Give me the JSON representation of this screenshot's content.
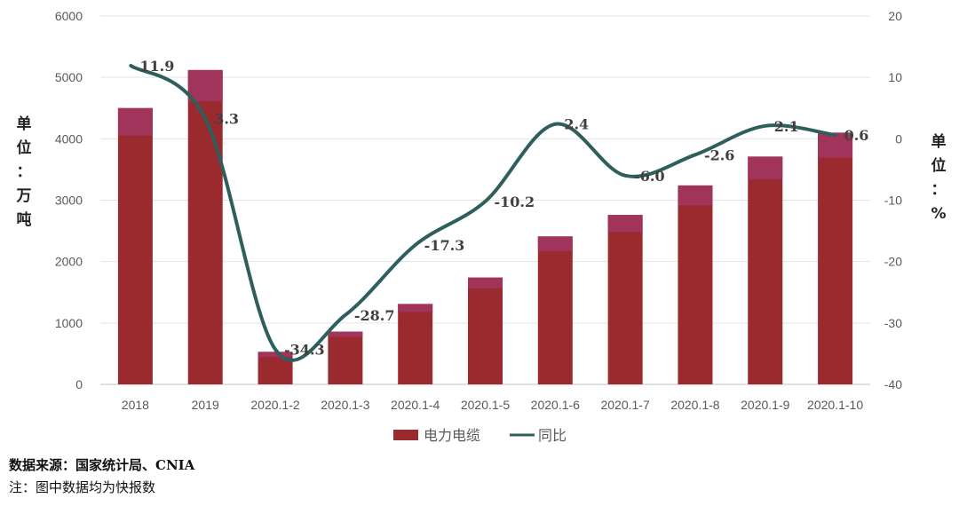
{
  "chart_data": {
    "type": "bar",
    "categories": [
      "2018",
      "2019",
      "2020.1-2",
      "2020.1-3",
      "2020.1-4",
      "2020.1-5",
      "2020.1-6",
      "2020.1-7",
      "2020.1-8",
      "2020.1-9",
      "2020.1-10"
    ],
    "series": [
      {
        "name": "电力电缆",
        "type": "bar",
        "axis": "left",
        "color": "#9B2A2E",
        "top_color": "#A0345A",
        "values": [
          4500,
          5120,
          530,
          860,
          1310,
          1740,
          2410,
          2760,
          3240,
          3710,
          4100
        ]
      },
      {
        "name": "同比",
        "type": "line",
        "axis": "right",
        "color": "#2E5F5D",
        "values": [
          11.9,
          3.3,
          -34.3,
          -28.7,
          -17.3,
          -10.2,
          2.4,
          -6.0,
          -2.6,
          2.1,
          0.6
        ],
        "labels": [
          "11.9",
          "3.3",
          "-34.3",
          "-28.7",
          "-17.3",
          "-10.2",
          "2.4",
          "-6.0",
          "-2.6",
          "2.1",
          "0.6"
        ]
      }
    ],
    "y_left": {
      "ticks": [
        "0",
        "1000",
        "2000",
        "3000",
        "4000",
        "5000",
        "6000"
      ],
      "ylim": [
        0,
        6000
      ]
    },
    "y_right": {
      "ticks": [
        "-40",
        "-30",
        "-20",
        "-10",
        "0",
        "10",
        "20"
      ],
      "ylim": [
        -40,
        20
      ]
    },
    "grid": true,
    "legend_position": "bottom"
  },
  "axis_units": {
    "left_chars": [
      "单",
      "位",
      "：",
      "万",
      "吨"
    ],
    "right_chars": [
      "单",
      "位",
      "：",
      "%"
    ]
  },
  "legend": {
    "bar_label": "电力电缆",
    "line_label": "同比"
  },
  "footnotes": {
    "source": "数据来源：国家统计局、CNIA",
    "note": "注：图中数据均为快报数"
  }
}
